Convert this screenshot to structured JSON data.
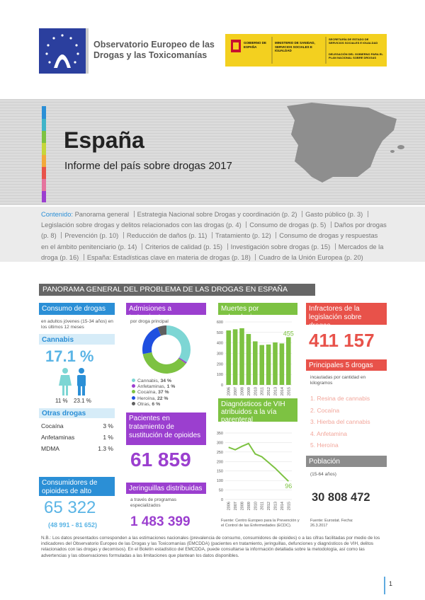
{
  "header": {
    "org_line_1": "Observatorio Europeo de las",
    "org_line_2": "Drogas y las Toxicomanías",
    "gov": "GOBIERNO DE ESPAÑA",
    "ministry": "MINISTERIO DE SANIDAD, SERVICIOS SOCIALES E IGUALDAD",
    "secretariat": "SECRETARÍA DE ESTADO DE SERVICIOS SOCIALES E IGUALDAD",
    "delegation": "DELEGACIÓN DEL GOBIERNO PARA EL PLAN NACIONAL SOBRE DROGAS"
  },
  "banner": {
    "title": "España",
    "subtitle": "Informe del país sobre drogas 2017"
  },
  "contents": {
    "label": "Contenido:",
    "items": [
      "Panorama general",
      "Estrategia Nacional sobre Drogas y coordinación (p. 2)",
      "Gasto público (p. 3)",
      "Legislación sobre drogas y delitos relacionados con las drogas (p. 4)",
      "Consumo de drogas (p. 5)",
      "Daños por drogas (p. 8)",
      "Prevención (p. 10)",
      "Reducción de daños (p. 11)",
      "Tratamiento (p. 12)",
      "Consumo de drogas y respuestas en el ámbito penitenciario (p. 14)",
      "Criterios de calidad (p. 15)",
      "Investigación sobre drogas (p. 15)",
      "Mercados de la droga (p. 16)",
      "España: Estadísticas clave en materia de drogas (p. 18)",
      "Cuadro de la Unión Europea (p. 20)"
    ]
  },
  "section_title": "PANORAMA GENERAL DEL PROBLEMA DE LAS DROGAS EN ESPAÑA",
  "drug_use": {
    "title": "Consumo de drogas",
    "subtitle": "en adultos jóvenes (15-34 años) en los últimos 12 meses",
    "cannabis_title": "Cannabis",
    "cannabis_value": "17.1 %",
    "female_value": "11 %",
    "male_value": "23.1 %",
    "other_title": "Otras drogas",
    "other": [
      [
        "Cocaína",
        "3 %"
      ],
      [
        "Anfetaminas",
        "1 %"
      ],
      [
        "MDMA",
        "1.3 %"
      ]
    ]
  },
  "high_risk": {
    "title": "Consumidores de opioides de alto riesgo",
    "value": "65 322",
    "range": "(48 991 - 81 652)"
  },
  "treatment": {
    "title": "Admisiones a tratamiento",
    "subtitle": "por droga principal",
    "chart": {
      "type": "donut",
      "categories": [
        "Cannabis,",
        "Anfetaminas,",
        "Cocaína,",
        "Heroína,",
        "Otras,"
      ],
      "values": [
        34,
        1,
        37,
        22,
        6
      ],
      "value_labels": [
        "34 %",
        "1 %",
        "37 %",
        "22 %",
        "6 %"
      ],
      "colors": [
        "#7dd6d4",
        "#9b3fcf",
        "#7dc242",
        "#1f4fe0",
        "#5f5f5f"
      ]
    }
  },
  "substitution": {
    "title": "Pacientes en tratamiento de sustitución de opioides",
    "value": "61 859"
  },
  "syringes": {
    "title": "Jeringuillas distribuidas",
    "subtitle": "a través de programas especializados",
    "value": "1 483 399"
  },
  "deaths": {
    "title": "Muertes por sobredosis",
    "chart": {
      "type": "bar",
      "categories": [
        "2006",
        "2007",
        "2008",
        "2009",
        "2010",
        "2011",
        "2012",
        "2013",
        "2014",
        "2015"
      ],
      "values": [
        519,
        530,
        540,
        485,
        415,
        380,
        385,
        405,
        395,
        455
      ],
      "value_labels": [
        null,
        null,
        null,
        null,
        null,
        null,
        null,
        null,
        null,
        "455"
      ],
      "ylim": [
        0,
        600
      ],
      "yticks": [
        0,
        100,
        200,
        300,
        400,
        500,
        600
      ],
      "color": "#7dc242"
    }
  },
  "hiv": {
    "title": "Diagnósticos de VIH atribuidos a la vía parenteral",
    "chart": {
      "type": "line",
      "categories": [
        "2006",
        "2007",
        "2008",
        "2009",
        "2010",
        "2011",
        "2012",
        "2013",
        "2014",
        "2015"
      ],
      "values": [
        275,
        262,
        280,
        295,
        240,
        225,
        195,
        165,
        130,
        96
      ],
      "value_labels": [
        null,
        null,
        null,
        null,
        null,
        null,
        null,
        null,
        null,
        "96"
      ],
      "ylim": [
        0,
        350
      ],
      "yticks": [
        0,
        50,
        100,
        150,
        200,
        250,
        300,
        350
      ],
      "color": "#7dc242"
    },
    "source": "Fuente: Centro Europeo para la Prevención y el Control de las Enfermedades (ECDC)."
  },
  "offenders": {
    "title": "Infractores de la legislación sobre drogas",
    "value": "411 157"
  },
  "seizures": {
    "title": "Principales 5 drogas",
    "subtitle": "incautadas por cantidad en kilogramos",
    "items": [
      "1. Resina de cannabis",
      "2. Cocaína",
      "3. Hierba del cannabis",
      "4. Anfetamina",
      "5. Heroína"
    ]
  },
  "population": {
    "title": "Población",
    "subtitle": "(15-64 años)",
    "value": "30 808 472",
    "source": "Fuente: Eurostat. Fecha: 26.3.2017"
  },
  "note": "N.B.: Los datos presentados corresponden a las estimaciones nacionales (prevalencia de consumo, consumidores de opioides) o a las cifras facilitadas por medio de los indicadores del Observatorio Europeo de las Drogas y las Toxicomanías (EMCDDA) (pacientes en tratamiento, jeringuillas, defunciones y diagnósticos de VIH, delitos relacionados con las drogas y decomisos). En el Boletín estadístico del EMCDDA, puede consultarse la información detallada sobre la metodología, así como las advertencias y las observaciones formuladas a las limitaciones que plantean los datos disponibles.",
  "page_number": "1"
}
